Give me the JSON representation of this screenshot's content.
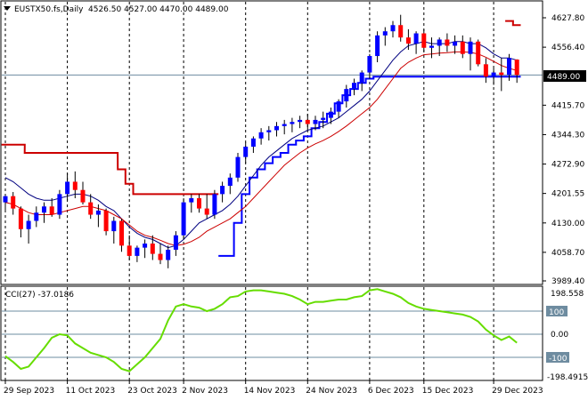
{
  "header": {
    "symbol": "EUSTX50.fs,Daily",
    "ohlc": "4526.50 4527.00 4470.00 4489.00"
  },
  "indicator": {
    "label": "CCI(27) -37.0186",
    "top_value": "198.558",
    "bottom_value": "-198.4915",
    "upper_level": "100",
    "zero_level": "0.00",
    "lower_level": "-100"
  },
  "price_badge": "4489.00",
  "colors": {
    "bull": "#0000ff",
    "bear": "#ff0000",
    "blue_line": "#0000ff",
    "navy_line": "#000080",
    "red_line": "#cc0000",
    "dark_red_line": "#cc0000",
    "cci_line": "#66dd00",
    "level_line": "#6e8ca0",
    "badge_bg": "#000000",
    "badge_fg": "#ffffff"
  },
  "chart_data": [
    {
      "type": "candlestick",
      "title": "EUSTX50.fs,Daily",
      "y_ticks": [
        3989.4,
        4058.7,
        4130.0,
        4201.55,
        4272.9,
        4344.3,
        4415.7,
        4556.4,
        4627.8
      ],
      "y_tick_labels": [
        "3989.40",
        "4058.70",
        "4130.00",
        "4201.55",
        "4272.90",
        "4344.30",
        "4415.70",
        "4556.40",
        "4627.80"
      ],
      "ylim": [
        3985,
        4650
      ],
      "x_labels": [
        "29 Sep 2023",
        "11 Oct 2023",
        "23 Oct 2023",
        "2 Nov 2023",
        "14 Nov 2023",
        "24 Nov 2023",
        "6 Dec 2023",
        "15 Dec 2023",
        "29 Dec 2023"
      ],
      "x_label_index": [
        0,
        8,
        16,
        23,
        31,
        39,
        47,
        54,
        63
      ],
      "candles": [
        [
          4180,
          4200,
          4160,
          4195
        ],
        [
          4195,
          4205,
          4150,
          4165
        ],
        [
          4165,
          4170,
          4095,
          4115
        ],
        [
          4115,
          4150,
          4080,
          4135
        ],
        [
          4135,
          4170,
          4120,
          4155
        ],
        [
          4155,
          4180,
          4130,
          4170
        ],
        [
          4170,
          4190,
          4145,
          4150
        ],
        [
          4150,
          4210,
          4140,
          4200
        ],
        [
          4200,
          4250,
          4185,
          4230
        ],
        [
          4230,
          4255,
          4190,
          4210
        ],
        [
          4210,
          4230,
          4175,
          4180
        ],
        [
          4180,
          4200,
          4140,
          4150
        ],
        [
          4150,
          4175,
          4120,
          4160
        ],
        [
          4160,
          4165,
          4100,
          4110
        ],
        [
          4110,
          4145,
          4080,
          4135
        ],
        [
          4135,
          4140,
          4060,
          4075
        ],
        [
          4075,
          4100,
          4040,
          4050
        ],
        [
          4050,
          4075,
          4035,
          4070
        ],
        [
          4070,
          4090,
          4045,
          4080
        ],
        [
          4080,
          4100,
          4040,
          4055
        ],
        [
          4055,
          4080,
          4030,
          4040
        ],
        [
          4040,
          4075,
          4020,
          4065
        ],
        [
          4065,
          4110,
          4050,
          4100
        ],
        [
          4100,
          4190,
          4090,
          4180
        ],
        [
          4180,
          4200,
          4155,
          4190
        ],
        [
          4190,
          4200,
          4155,
          4165
        ],
        [
          4165,
          4200,
          4140,
          4150
        ],
        [
          4150,
          4210,
          4140,
          4200
        ],
        [
          4200,
          4230,
          4180,
          4220
        ],
        [
          4220,
          4250,
          4200,
          4240
        ],
        [
          4240,
          4300,
          4230,
          4290
        ],
        [
          4290,
          4325,
          4275,
          4315
        ],
        [
          4315,
          4340,
          4300,
          4335
        ],
        [
          4335,
          4360,
          4320,
          4350
        ],
        [
          4350,
          4365,
          4330,
          4355
        ],
        [
          4355,
          4375,
          4340,
          4365
        ],
        [
          4365,
          4380,
          4345,
          4370
        ],
        [
          4370,
          4385,
          4350,
          4375
        ],
        [
          4375,
          4390,
          4360,
          4380
        ],
        [
          4380,
          4395,
          4355,
          4370
        ],
        [
          4370,
          4390,
          4355,
          4380
        ],
        [
          4380,
          4400,
          4360,
          4385
        ],
        [
          4385,
          4410,
          4370,
          4400
        ],
        [
          4400,
          4430,
          4385,
          4425
        ],
        [
          4425,
          4465,
          4410,
          4455
        ],
        [
          4455,
          4480,
          4440,
          4470
        ],
        [
          4470,
          4500,
          4450,
          4495
        ],
        [
          4495,
          4540,
          4480,
          4535
        ],
        [
          4535,
          4595,
          4520,
          4585
        ],
        [
          4585,
          4605,
          4560,
          4595
        ],
        [
          4595,
          4620,
          4580,
          4610
        ],
        [
          4610,
          4635,
          4570,
          4580
        ],
        [
          4580,
          4600,
          4550,
          4565
        ],
        [
          4565,
          4595,
          4540,
          4590
        ],
        [
          4590,
          4600,
          4545,
          4555
        ],
        [
          4555,
          4580,
          4530,
          4560
        ],
        [
          4560,
          4580,
          4535,
          4575
        ],
        [
          4575,
          4590,
          4545,
          4560
        ],
        [
          4560,
          4585,
          4540,
          4570
        ],
        [
          4570,
          4585,
          4530,
          4540
        ],
        [
          4540,
          4580,
          4500,
          4570
        ],
        [
          4570,
          4575,
          4510,
          4515
        ],
        [
          4515,
          4530,
          4470,
          4485
        ],
        [
          4485,
          4505,
          4465,
          4495
        ],
        [
          4495,
          4530,
          4450,
          4489
        ],
        [
          4489,
          4540,
          4475,
          4530
        ],
        [
          4526.5,
          4527,
          4470,
          4489
        ]
      ],
      "series": [
        {
          "role": "upper channel",
          "color": "#cc0000",
          "values": [
            4320,
            4320,
            4320,
            4300,
            4300,
            4300,
            4300,
            4300,
            4300,
            4300,
            4300,
            4300,
            4300,
            4300,
            4300,
            4260,
            4225,
            4200,
            4200,
            4200,
            4200,
            4200,
            4200,
            4200,
            4200,
            4200,
            4200,
            4200,
            null,
            null,
            null,
            null,
            null,
            null,
            null,
            null,
            null,
            null,
            null,
            null,
            null,
            null,
            null,
            null,
            null,
            null,
            null,
            null,
            null,
            null,
            null,
            null,
            null,
            null,
            null,
            null,
            null,
            null,
            null,
            null,
            null,
            null,
            null,
            null,
            null,
            4620,
            4610
          ]
        },
        {
          "role": "lower channel",
          "color": "#0000ff",
          "values": [
            null,
            null,
            null,
            null,
            null,
            null,
            null,
            null,
            null,
            null,
            null,
            null,
            null,
            null,
            null,
            null,
            null,
            null,
            null,
            null,
            null,
            null,
            null,
            null,
            null,
            null,
            null,
            null,
            4050,
            4050,
            4130,
            4200,
            4240,
            4260,
            4275,
            4290,
            4300,
            4320,
            4330,
            4340,
            4360,
            4375,
            4395,
            4420,
            4440,
            4455,
            4470,
            4480,
            4485,
            4485,
            4485,
            4485,
            4485,
            4485,
            4485,
            4485,
            4485,
            4485,
            4485,
            4485,
            4485,
            4485,
            4485,
            4485,
            4485,
            4485,
            4485
          ]
        },
        {
          "role": "fast moving average",
          "color": "#000080",
          "values": [
            4240,
            4230,
            4215,
            4200,
            4190,
            4185,
            4185,
            4190,
            4195,
            4200,
            4200,
            4195,
            4185,
            4170,
            4160,
            4140,
            4120,
            4105,
            4095,
            4090,
            4080,
            4070,
            4075,
            4090,
            4110,
            4130,
            4140,
            4150,
            4160,
            4175,
            4195,
            4220,
            4245,
            4270,
            4290,
            4305,
            4320,
            4335,
            4345,
            4355,
            4360,
            4365,
            4375,
            4385,
            4400,
            4415,
            4430,
            4450,
            4475,
            4500,
            4525,
            4545,
            4560,
            4565,
            4570,
            4565,
            4565,
            4565,
            4570,
            4570,
            4565,
            4565,
            4555,
            4540,
            4530,
            4530,
            4525
          ]
        },
        {
          "role": "slow moving average",
          "color": "#cc0000",
          "values": [
            4180,
            4175,
            4165,
            4155,
            4150,
            4150,
            4150,
            4155,
            4160,
            4165,
            4170,
            4170,
            4165,
            4160,
            4150,
            4140,
            4125,
            4110,
            4100,
            4095,
            4088,
            4080,
            4075,
            4078,
            4085,
            4095,
            4110,
            4120,
            4130,
            4140,
            4155,
            4170,
            4190,
            4210,
            4230,
            4250,
            4270,
            4285,
            4300,
            4312,
            4322,
            4330,
            4340,
            4352,
            4365,
            4380,
            4395,
            4410,
            4430,
            4455,
            4480,
            4505,
            4520,
            4530,
            4538,
            4540,
            4542,
            4543,
            4545,
            4545,
            4544,
            4540,
            4532,
            4522,
            4512,
            4505,
            4500
          ]
        }
      ]
    },
    {
      "type": "line",
      "title": "CCI(27)",
      "ylim": [
        -198.4915,
        198.558
      ],
      "levels": [
        100,
        0,
        -100
      ],
      "series": [
        {
          "name": "CCI(27)",
          "color": "#66dd00",
          "values": [
            -95,
            -120,
            -150,
            -140,
            -100,
            -60,
            -15,
            0,
            -5,
            -40,
            -60,
            -80,
            -90,
            -100,
            -120,
            -150,
            -160,
            -130,
            -100,
            -60,
            -20,
            60,
            120,
            130,
            120,
            115,
            100,
            110,
            130,
            160,
            165,
            185,
            190,
            190,
            185,
            180,
            175,
            165,
            150,
            130,
            140,
            140,
            145,
            150,
            150,
            160,
            165,
            190,
            195,
            185,
            175,
            160,
            135,
            120,
            110,
            105,
            100,
            95,
            90,
            85,
            75,
            55,
            20,
            -5,
            -25,
            -10,
            -37.0186
          ]
        }
      ]
    }
  ]
}
